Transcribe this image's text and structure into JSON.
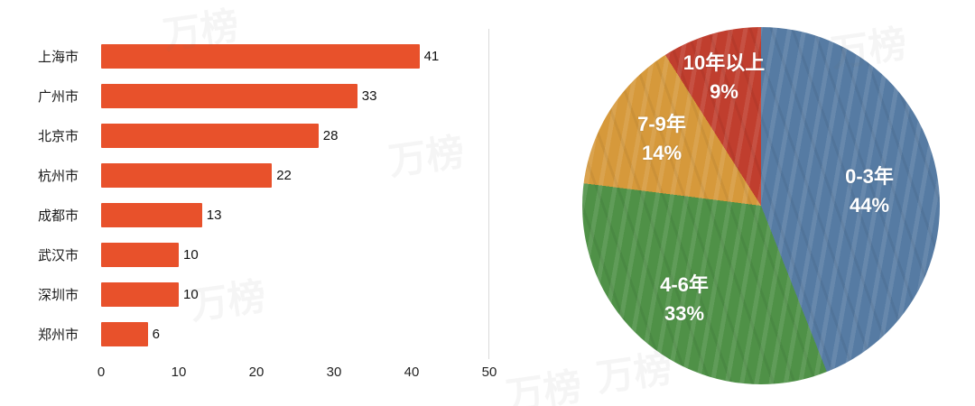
{
  "watermark": {
    "text": "万榜"
  },
  "chart_data": [
    {
      "type": "bar",
      "orientation": "horizontal",
      "title": "",
      "categories": [
        "上海市",
        "广州市",
        "北京市",
        "杭州市",
        "成都市",
        "武汉市",
        "深圳市",
        "郑州市"
      ],
      "values": [
        41,
        33,
        28,
        22,
        13,
        10,
        10,
        6
      ],
      "xlabel": "",
      "ylabel": "",
      "xlim": [
        0,
        50
      ],
      "xticks": [
        0,
        10,
        20,
        30,
        40,
        50
      ],
      "bar_color": "#E8512B",
      "value_labels": true,
      "grid": "right-edge-line-only"
    },
    {
      "type": "pie",
      "labels": [
        "0-3年",
        "4-6年",
        "7-9年",
        "10年以上"
      ],
      "values": [
        44,
        33,
        14,
        9
      ],
      "pct_labels": [
        "44%",
        "33%",
        "14%",
        "9%"
      ],
      "colors": [
        "#567BA3",
        "#4F9147",
        "#D6993B",
        "#C03E2E"
      ],
      "label_color": "#FFFFFF",
      "start_angle_deg": 0,
      "direction": "clockwise",
      "legend": "labels-inside-slices"
    }
  ]
}
